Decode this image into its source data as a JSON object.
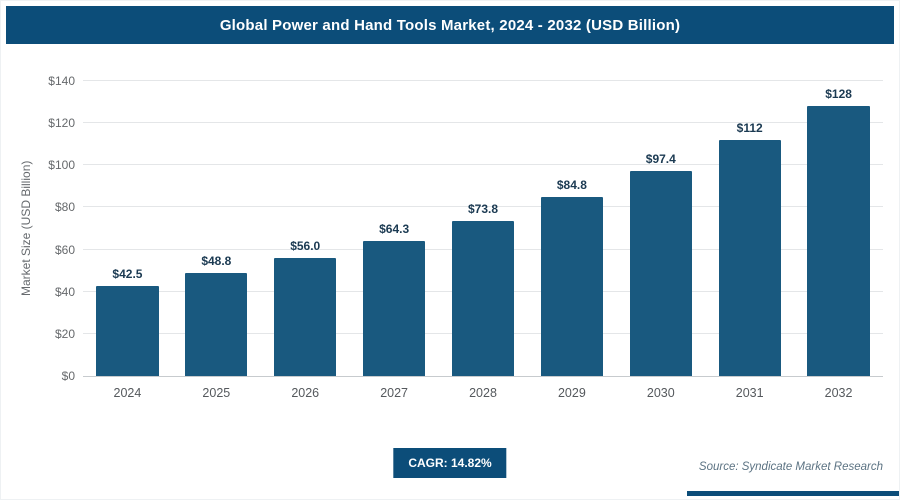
{
  "header": {
    "title": "Global Power and Hand Tools Market, 2024 - 2032 (USD Billion)"
  },
  "chart_data": {
    "type": "bar",
    "title": "Global Power and Hand Tools Market, 2024 - 2032 (USD Billion)",
    "categories": [
      "2024",
      "2025",
      "2026",
      "2027",
      "2028",
      "2029",
      "2030",
      "2031",
      "2032"
    ],
    "values": [
      42.5,
      48.8,
      56.0,
      64.3,
      73.8,
      84.8,
      97.4,
      112,
      128
    ],
    "value_labels": [
      "$42.5",
      "$48.8",
      "$56.0",
      "$64.3",
      "$73.8",
      "$84.8",
      "$97.4",
      "$112",
      "$128"
    ],
    "xlabel": "",
    "ylabel": "Market Size (USD Billion)",
    "ylim": [
      0,
      140
    ],
    "ytick_step": 20,
    "ytick_prefix": "$",
    "grid": true,
    "legend": false
  },
  "footer": {
    "cagr_label": "CAGR: 14.82%",
    "source": "Source: Syndicate Market Research"
  },
  "colors": {
    "header_bg": "#0c4d79",
    "bar": "#19597f",
    "badge_bg": "#0c4d79",
    "accent_strip": "#0c4d79"
  }
}
